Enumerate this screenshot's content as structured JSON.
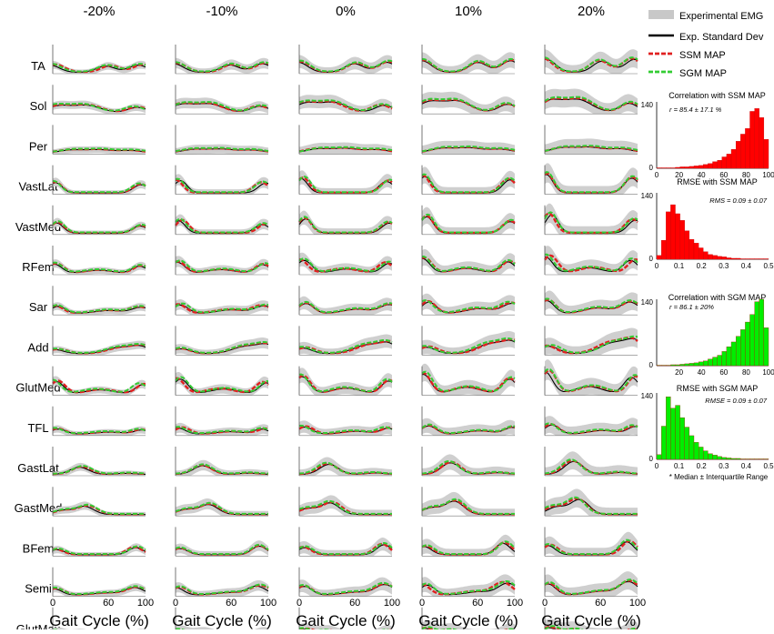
{
  "chart_data": {
    "type": "line",
    "columns": [
      "-20%",
      "-10%",
      "0%",
      "10%",
      "20%"
    ],
    "muscles": [
      "TA",
      "Sol",
      "Per",
      "VastLat",
      "VastMed",
      "RFem",
      "Sar",
      "Add",
      "GlutMed",
      "TFL",
      "GastLat",
      "GastMed",
      "BFem",
      "Semi",
      "GlutMax"
    ],
    "x_ticks": [
      "0",
      "60",
      "100"
    ],
    "x_label": "Gait Cycle (%)",
    "x_range": [
      0,
      100
    ],
    "legend": [
      {
        "label": "Experimental EMG",
        "color": "#c8c8c8",
        "style": "band"
      },
      {
        "label": "Exp. Standard Dev",
        "color": "#000000",
        "style": "solid"
      },
      {
        "label": "SSM MAP",
        "color": "#e02020",
        "style": "dashed"
      },
      {
        "label": "SGM MAP",
        "color": "#33cc33",
        "style": "dashed"
      }
    ],
    "histograms": [
      {
        "title": "Correlation with SSM MAP",
        "annotation": "r = 85.4 ± 17.1 %",
        "color": "#ff0000",
        "x_ticks": [
          "0",
          "20",
          "40",
          "60",
          "80",
          "100"
        ],
        "y_ticks": [
          "0",
          "140"
        ],
        "x_range": [
          0,
          100
        ],
        "y_range": [
          0,
          140
        ],
        "counts": [
          1,
          1,
          1,
          1,
          2,
          3,
          3,
          4,
          5,
          6,
          8,
          10,
          14,
          17,
          24,
          30,
          40,
          57,
          72,
          84,
          120,
          126,
          107,
          61
        ]
      },
      {
        "title": "RMSE with SSM MAP",
        "annotation": "RMS = 0.09 ± 0.07",
        "color": "#ff0000",
        "x_ticks": [
          "0",
          "0.1",
          "0.2",
          "0.3",
          "0.4",
          "0.5"
        ],
        "y_ticks": [
          "0",
          "140"
        ],
        "x_range": [
          0,
          0.5
        ],
        "y_range": [
          0,
          140
        ],
        "counts": [
          8,
          40,
          100,
          115,
          96,
          82,
          60,
          42,
          34,
          24,
          16,
          10,
          8,
          6,
          5,
          3,
          2,
          2,
          1,
          1,
          1,
          1,
          1,
          1
        ]
      },
      {
        "title": "Correlation with SGM MAP",
        "annotation": "r = 86.1 ± 20%",
        "color": "#00ee00",
        "x_ticks": [
          "20",
          "40",
          "60",
          "80",
          "100"
        ],
        "y_ticks": [
          "0",
          "140"
        ],
        "x_range": [
          0,
          100
        ],
        "y_range": [
          0,
          140
        ],
        "counts": [
          1,
          1,
          1,
          2,
          2,
          3,
          4,
          5,
          6,
          8,
          10,
          14,
          18,
          22,
          30,
          40,
          50,
          62,
          76,
          92,
          108,
          135,
          140,
          80
        ]
      },
      {
        "title": "RMSE with SGM MAP",
        "annotation": "RMSE = 0.09 ± 0.07",
        "color": "#00ee00",
        "x_ticks": [
          "0",
          "0.1",
          "0.2",
          "0.3",
          "0.4",
          "0.5"
        ],
        "y_ticks": [
          "0",
          "140"
        ],
        "x_range": [
          0,
          0.5
        ],
        "y_range": [
          0,
          140
        ],
        "counts": [
          10,
          70,
          132,
          108,
          114,
          88,
          68,
          50,
          36,
          26,
          18,
          12,
          9,
          6,
          4,
          3,
          2,
          2,
          1,
          1,
          1,
          1,
          1,
          1
        ]
      }
    ],
    "footnote": "* Median ± Interquartile Range"
  }
}
